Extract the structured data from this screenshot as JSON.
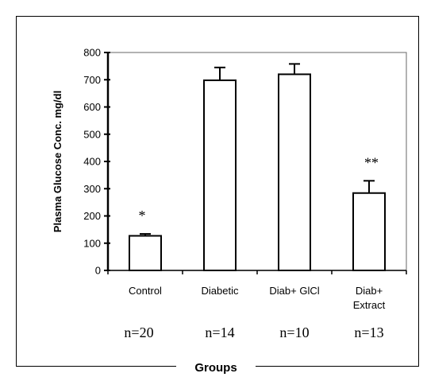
{
  "chart_data": {
    "type": "bar",
    "categories": [
      [
        "Control"
      ],
      [
        "Diabetic"
      ],
      [
        "Diab+ GlCl"
      ],
      [
        "Diab+",
        "Extract"
      ]
    ],
    "values": [
      127,
      698,
      720,
      284
    ],
    "errors": [
      7,
      47,
      38,
      45
    ],
    "significance": [
      "*",
      "",
      "",
      "**"
    ],
    "sample_sizes": [
      "n=20",
      "n=14",
      "n=10",
      "n=13"
    ],
    "ylabel": "Plasma Glucose Conc. mg/dl",
    "xlabel": "Groups",
    "ylim": [
      0,
      800
    ],
    "yticks": [
      0,
      100,
      200,
      300,
      400,
      500,
      600,
      700,
      800
    ],
    "bar_fill": "#ffffff",
    "bar_stroke": "#000000",
    "plot_frame_color": "#808080"
  }
}
